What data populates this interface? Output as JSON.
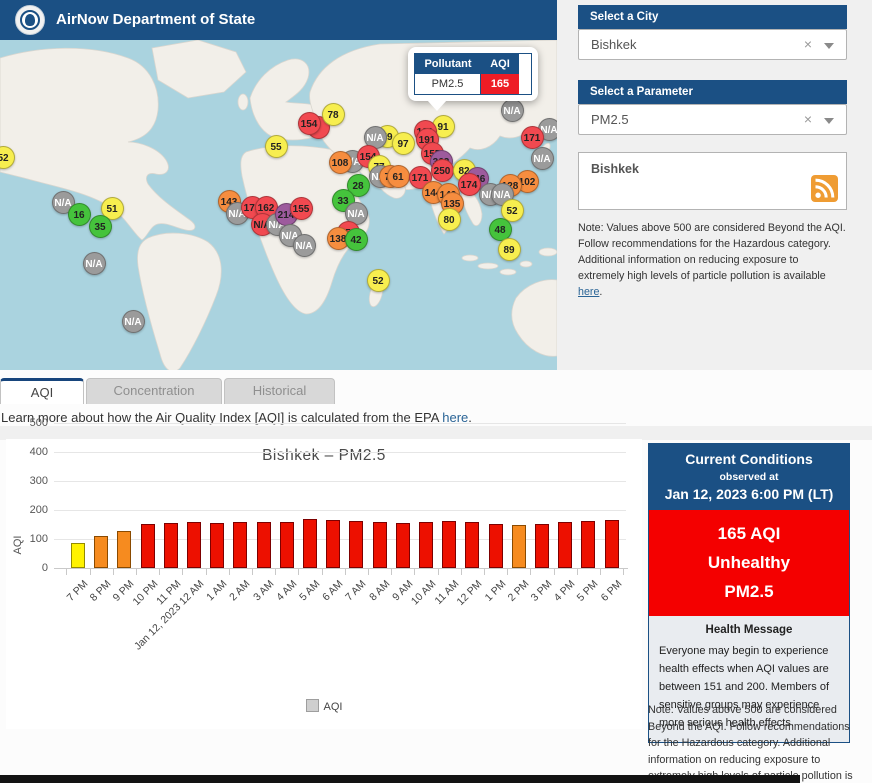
{
  "header": {
    "title": "AirNow Department of State"
  },
  "map": {
    "popup": {
      "pollutant_label": "Pollutant",
      "aqi_label": "AQI",
      "pollutant": "PM2.5",
      "aqi": "165"
    },
    "markers": [
      {
        "v": "52",
        "x": 3,
        "y": 117,
        "c": "yellow"
      },
      {
        "v": "N/A",
        "x": 63,
        "y": 162,
        "c": "gray"
      },
      {
        "v": "16",
        "x": 79,
        "y": 174,
        "c": "green"
      },
      {
        "v": "51",
        "x": 112,
        "y": 168,
        "c": "yellow"
      },
      {
        "v": "35",
        "x": 100,
        "y": 186,
        "c": "green"
      },
      {
        "v": "N/A",
        "x": 94,
        "y": 223,
        "c": "gray"
      },
      {
        "v": "N/A",
        "x": 133,
        "y": 281,
        "c": "gray"
      },
      {
        "v": "143",
        "x": 229,
        "y": 161,
        "c": "orange"
      },
      {
        "v": "N/A",
        "x": 237,
        "y": 173,
        "c": "gray"
      },
      {
        "v": "175",
        "x": 252,
        "y": 167,
        "c": "red"
      },
      {
        "v": "162",
        "x": 266,
        "y": 167,
        "c": "red"
      },
      {
        "v": "N/A",
        "x": 262,
        "y": 184,
        "c": "red"
      },
      {
        "v": "N/A",
        "x": 277,
        "y": 184,
        "c": "gray"
      },
      {
        "v": "214",
        "x": 286,
        "y": 174,
        "c": "purple"
      },
      {
        "v": "N/A",
        "x": 290,
        "y": 195,
        "c": "gray"
      },
      {
        "v": "N/A",
        "x": 304,
        "y": 205,
        "c": "gray"
      },
      {
        "v": "155",
        "x": 301,
        "y": 168,
        "c": "red"
      },
      {
        "v": "55",
        "x": 276,
        "y": 106,
        "c": "yellow"
      },
      {
        "v": "",
        "x": 318,
        "y": 87,
        "c": "red"
      },
      {
        "v": "154",
        "x": 309,
        "y": 83,
        "c": "red"
      },
      {
        "v": "78",
        "x": 333,
        "y": 74,
        "c": "yellow"
      },
      {
        "v": "59",
        "x": 387,
        "y": 96,
        "c": "yellow"
      },
      {
        "v": "N/A",
        "x": 375,
        "y": 97,
        "c": "gray"
      },
      {
        "v": "97",
        "x": 403,
        "y": 103,
        "c": "yellow"
      },
      {
        "v": "N/A",
        "x": 352,
        "y": 121,
        "c": "gray"
      },
      {
        "v": "108",
        "x": 340,
        "y": 122,
        "c": "orange"
      },
      {
        "v": "154",
        "x": 368,
        "y": 116,
        "c": "red"
      },
      {
        "v": "77",
        "x": 379,
        "y": 126,
        "c": "yellow"
      },
      {
        "v": "N/A",
        "x": 380,
        "y": 136,
        "c": "gray"
      },
      {
        "v": "76",
        "x": 390,
        "y": 136,
        "c": "orange"
      },
      {
        "v": "61",
        "x": 398,
        "y": 136,
        "c": "orange"
      },
      {
        "v": "171",
        "x": 420,
        "y": 137,
        "c": "red"
      },
      {
        "v": "28",
        "x": 358,
        "y": 145,
        "c": "green"
      },
      {
        "v": "33",
        "x": 343,
        "y": 160,
        "c": "green"
      },
      {
        "v": "N/A",
        "x": 356,
        "y": 173,
        "c": "gray"
      },
      {
        "v": "154",
        "x": 348,
        "y": 192,
        "c": "red"
      },
      {
        "v": "138",
        "x": 338,
        "y": 198,
        "c": "orange"
      },
      {
        "v": "42",
        "x": 356,
        "y": 199,
        "c": "green"
      },
      {
        "v": "52",
        "x": 378,
        "y": 240,
        "c": "yellow"
      },
      {
        "v": "91",
        "x": 443,
        "y": 86,
        "c": "yellow"
      },
      {
        "v": "131",
        "x": 425,
        "y": 91,
        "c": "red"
      },
      {
        "v": "191",
        "x": 427,
        "y": 99,
        "c": "red"
      },
      {
        "v": "155",
        "x": 432,
        "y": 113,
        "c": "red"
      },
      {
        "v": "362",
        "x": 441,
        "y": 121,
        "c": "purple"
      },
      {
        "v": "250",
        "x": 442,
        "y": 130,
        "c": "red"
      },
      {
        "v": "82",
        "x": 464,
        "y": 130,
        "c": "yellow"
      },
      {
        "v": "246",
        "x": 477,
        "y": 138,
        "c": "purple"
      },
      {
        "v": "174",
        "x": 469,
        "y": 144,
        "c": "red"
      },
      {
        "v": "144",
        "x": 433,
        "y": 152,
        "c": "orange"
      },
      {
        "v": "140",
        "x": 448,
        "y": 154,
        "c": "orange"
      },
      {
        "v": "135",
        "x": 452,
        "y": 163,
        "c": "orange"
      },
      {
        "v": "80",
        "x": 449,
        "y": 179,
        "c": "yellow"
      },
      {
        "v": "N/A",
        "x": 512,
        "y": 70,
        "c": "gray"
      },
      {
        "v": "N/A",
        "x": 549,
        "y": 89,
        "c": "gray"
      },
      {
        "v": "171",
        "x": 532,
        "y": 97,
        "c": "red"
      },
      {
        "v": "N/A",
        "x": 542,
        "y": 118,
        "c": "gray"
      },
      {
        "v": "102",
        "x": 527,
        "y": 141,
        "c": "orange"
      },
      {
        "v": "128",
        "x": 510,
        "y": 145,
        "c": "orange"
      },
      {
        "v": "N/A",
        "x": 490,
        "y": 154,
        "c": "gray"
      },
      {
        "v": "N/A",
        "x": 502,
        "y": 154,
        "c": "gray"
      },
      {
        "v": "52",
        "x": 512,
        "y": 170,
        "c": "yellow"
      },
      {
        "v": "48",
        "x": 500,
        "y": 189,
        "c": "green"
      },
      {
        "v": "89",
        "x": 509,
        "y": 209,
        "c": "yellow"
      }
    ]
  },
  "city_select": {
    "header": "Select a City",
    "value": "Bishkek",
    "clear_icon": "×"
  },
  "param_select": {
    "header": "Select a Parameter",
    "value": "PM2.5",
    "clear_icon": "×"
  },
  "rss_box": {
    "city": "Bishkek"
  },
  "aqi_note": {
    "text": "Note: Values above 500 are considered Beyond the AQI. Follow recommendations for the Hazardous category. Additional information on reducing exposure to extremely high levels of particle pollution is available ",
    "link_label": "here",
    "suffix": "."
  },
  "tabs": [
    {
      "label": "AQI",
      "active": true
    },
    {
      "label": "Concentration",
      "active": false
    },
    {
      "label": "Historical",
      "active": false
    }
  ],
  "learn_more": {
    "text": "Learn more about how the Air Quality Index [AQI] is calculated from the EPA ",
    "link_label": "here",
    "suffix": "."
  },
  "chart_data": {
    "type": "bar",
    "title": "Bishkek – PM2.5",
    "xlabel": "",
    "ylabel": "AQI",
    "legend": [
      "AQI"
    ],
    "legend_position": "bottom",
    "grid": true,
    "yticks": [
      0,
      100,
      200,
      300,
      400,
      500
    ],
    "ylim": [
      0,
      550
    ],
    "categories": [
      "7 PM",
      "8 PM",
      "9 PM",
      "10 PM",
      "11 PM",
      "Jan 12, 2023 12 AM",
      "1 AM",
      "2 AM",
      "3 AM",
      "4 AM",
      "5 AM",
      "6 AM",
      "7 AM",
      "8 AM",
      "9 AM",
      "10 AM",
      "11 AM",
      "12 PM",
      "1 PM",
      "2 PM",
      "3 PM",
      "4 PM",
      "5 PM",
      "6 PM"
    ],
    "values": [
      85,
      110,
      127,
      152,
      155,
      160,
      155,
      160,
      160,
      160,
      170,
      166,
      162,
      158,
      156,
      160,
      161,
      158,
      153,
      147,
      151,
      159,
      163,
      165
    ],
    "bar_colors": [
      "yellow",
      "orange",
      "orange",
      "red",
      "red",
      "red",
      "red",
      "red",
      "red",
      "red",
      "red",
      "red",
      "red",
      "red",
      "red",
      "red",
      "red",
      "red",
      "red",
      "orange",
      "red",
      "red",
      "red",
      "red"
    ]
  },
  "current_conditions": {
    "title": "Current Conditions",
    "observed_at_label": "observed at",
    "observed_at": "Jan 12, 2023 6:00 PM (LT)",
    "aqi_line1": "165 AQI",
    "aqi_line2": "Unhealthy",
    "aqi_line3": "PM2.5",
    "health_title": "Health Message",
    "health_text": "Everyone may begin to experience health effects when AQI values are between 151 and 200. Members of sensitive groups may experience more serious health effects."
  },
  "colors": {
    "navy": "#1b5084",
    "status_red": "#ee1c25",
    "aqi_green": "#45c33c",
    "aqi_yellow": "#f7ee4f",
    "aqi_orange": "#f68d3f",
    "aqi_red": "#f14950",
    "aqi_purple": "#9d5b9d",
    "aqi_gray": "#9b9b9b",
    "map_water": "#aad3df",
    "map_land": "#f2efe9"
  }
}
